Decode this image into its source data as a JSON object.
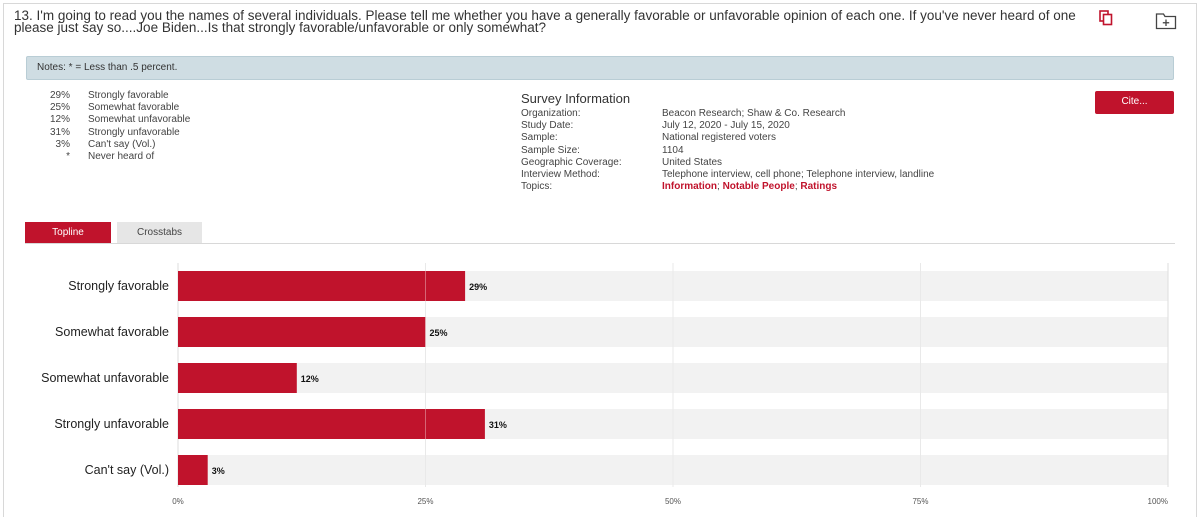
{
  "question": {
    "text": "13. I'm going to read you the names of several individuals. Please tell me whether you have a generally favorable or unfavorable opinion of each one. If you've never heard of one please just say so....Joe Biden...Is that strongly favorable/unfavorable or only somewhat?"
  },
  "notes": "Notes: * = Less than .5 percent.",
  "responses": [
    {
      "pct": "29%",
      "label": "Strongly favorable"
    },
    {
      "pct": "25%",
      "label": "Somewhat favorable"
    },
    {
      "pct": "12%",
      "label": "Somewhat unfavorable"
    },
    {
      "pct": "31%",
      "label": "Strongly unfavorable"
    },
    {
      "pct": "3%",
      "label": "Can't say (Vol.)"
    },
    {
      "pct": "*",
      "label": "Never heard of"
    }
  ],
  "survey": {
    "title": "Survey Information",
    "organization_label": "Organization:",
    "organization": "Beacon Research; Shaw & Co. Research",
    "study_date_label": "Study Date:",
    "study_date": "July 12, 2020 - July 15, 2020",
    "sample_label": "Sample:",
    "sample": "National registered voters",
    "sample_size_label": "Sample Size:",
    "sample_size": "1104",
    "coverage_label": "Geographic Coverage:",
    "coverage": "United States",
    "method_label": "Interview Method:",
    "method": "Telephone interview, cell phone; Telephone interview, landline",
    "topics_label": "Topics:",
    "topics": [
      "Information",
      "Notable People",
      "Ratings"
    ],
    "topic_separator": "; "
  },
  "cite_label": "Cite...",
  "tabs": {
    "topline": "Topline",
    "crosstabs": "Crosstabs"
  },
  "icons": {
    "copy": "copy-icon",
    "folder_add": "folder-add-icon"
  },
  "colors": {
    "accent": "#c0132c",
    "bar": "#c0132c",
    "notes_bg": "#cfdde3",
    "tab_inactive": "#e6e6e6"
  },
  "chart_data": {
    "type": "bar",
    "orientation": "horizontal",
    "categories": [
      "Strongly favorable",
      "Somewhat favorable",
      "Somewhat unfavorable",
      "Strongly unfavorable",
      "Can't say (Vol.)"
    ],
    "values": [
      29,
      25,
      12,
      31,
      3
    ],
    "value_labels": [
      "29%",
      "25%",
      "12%",
      "31%",
      "3%"
    ],
    "xlim": [
      0,
      100
    ],
    "xticks": [
      0,
      25,
      50,
      75,
      100
    ],
    "xtick_labels": [
      "0%",
      "25%",
      "50%",
      "75%",
      "100%"
    ],
    "grid": true
  }
}
